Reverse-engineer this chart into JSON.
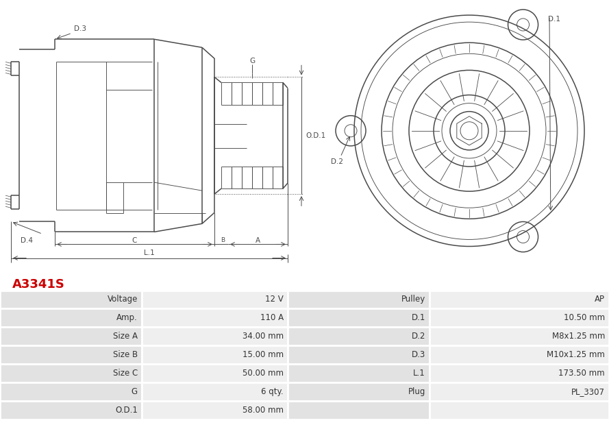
{
  "title": "A3341S",
  "title_color": "#cc0000",
  "bg_color": "#ffffff",
  "table_row_bg1": "#e2e2e2",
  "table_row_bg2": "#efefef",
  "table_border_color": "#ffffff",
  "rows": [
    [
      "Voltage",
      "12 V",
      "Pulley",
      "AP"
    ],
    [
      "Amp.",
      "110 A",
      "D.1",
      "10.50 mm"
    ],
    [
      "Size A",
      "34.00 mm",
      "D.2",
      "M8x1.25 mm"
    ],
    [
      "Size B",
      "15.00 mm",
      "D.3",
      "M10x1.25 mm"
    ],
    [
      "Size C",
      "50.00 mm",
      "L.1",
      "173.50 mm"
    ],
    [
      "G",
      "6 qty.",
      "Plug",
      "PL_3307"
    ],
    [
      "O.D.1",
      "58.00 mm",
      "",
      ""
    ]
  ],
  "lc": "#4a4a4a",
  "lw_main": 1.1,
  "lw_thin": 0.65,
  "lw_dim": 0.7,
  "label_fs": 7.5,
  "table_fs": 8.5
}
